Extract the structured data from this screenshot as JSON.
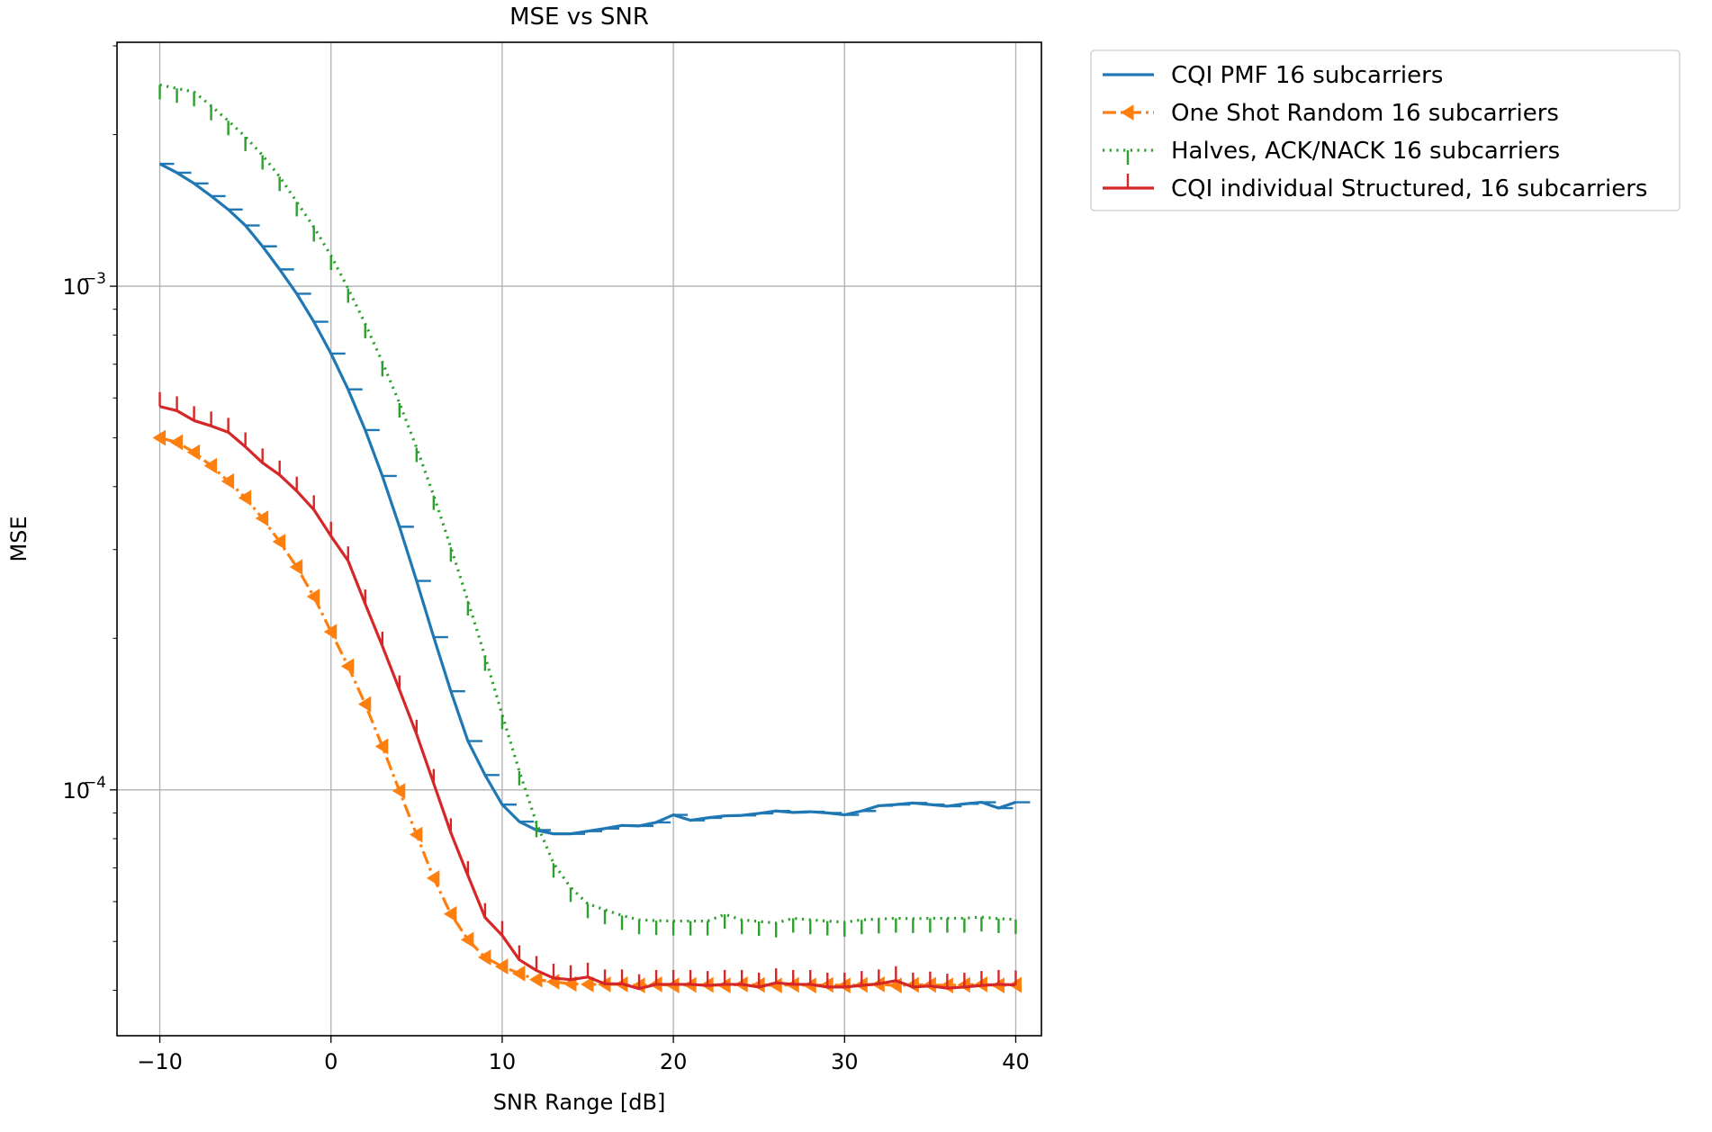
{
  "chart_data": {
    "type": "line",
    "title": "MSE vs SNR",
    "xlabel": "SNR Range [dB]",
    "ylabel": "MSE",
    "xlim": [
      -12.5,
      41.5
    ],
    "ylim": [
      3.25e-05,
      0.00305
    ],
    "yscale": "log",
    "grid": true,
    "legend_position": "outside-top-right",
    "x_ticks": [
      {
        "value": -10,
        "label": "−10"
      },
      {
        "value": 0,
        "label": "0"
      },
      {
        "value": 10,
        "label": "10"
      },
      {
        "value": 20,
        "label": "20"
      },
      {
        "value": 30,
        "label": "30"
      },
      {
        "value": 40,
        "label": "40"
      }
    ],
    "y_ticks": [
      {
        "value": 0.001,
        "base": "10",
        "exp": "−3"
      },
      {
        "value": 0.0001,
        "base": "10",
        "exp": "−4"
      }
    ],
    "x": [
      -10,
      -9,
      -8,
      -7,
      -6,
      -5,
      -4,
      -3,
      -2,
      -1,
      0,
      1,
      2,
      3,
      4,
      5,
      6,
      7,
      8,
      9,
      10,
      11,
      12,
      13,
      14,
      15,
      16,
      17,
      18,
      19,
      20,
      21,
      22,
      23,
      24,
      25,
      26,
      27,
      28,
      29,
      30,
      31,
      32,
      33,
      34,
      35,
      36,
      37,
      38,
      39,
      40
    ],
    "series": [
      {
        "name": "CQI PMF 16 subcarriers",
        "color": "#1f77b4",
        "linestyle": "solid",
        "marker": "hline",
        "values": [
          0.00175,
          0.00168,
          0.0016,
          0.00151,
          0.00142,
          0.00132,
          0.0012,
          0.00108,
          0.000966,
          0.00085,
          0.000735,
          0.000624,
          0.000518,
          0.00042,
          0.000333,
          0.00026,
          0.000201,
          0.000157,
          0.000125,
          0.000107,
          9.35e-05,
          8.65e-05,
          8.32e-05,
          8.18e-05,
          8.18e-05,
          8.28e-05,
          8.38e-05,
          8.5e-05,
          8.48e-05,
          8.62e-05,
          8.92e-05,
          8.7e-05,
          8.8e-05,
          8.88e-05,
          8.9e-05,
          8.98e-05,
          9.08e-05,
          9.02e-05,
          9.05e-05,
          9e-05,
          8.92e-05,
          9.08e-05,
          9.3e-05,
          9.35e-05,
          9.42e-05,
          9.35e-05,
          9.28e-05,
          9.38e-05,
          9.45e-05,
          9.2e-05,
          9.45e-05
        ]
      },
      {
        "name": "One Shot Random 16 subcarriers",
        "color": "#ff7f0e",
        "linestyle": "dashdot",
        "marker": "triangle-left",
        "values": [
          0.0005,
          0.00049,
          0.000468,
          0.00044,
          0.00041,
          0.00038,
          0.000346,
          0.000311,
          0.000277,
          0.000242,
          0.000206,
          0.000176,
          0.000148,
          0.000122,
          9.95e-05,
          8.15e-05,
          6.68e-05,
          5.67e-05,
          5.04e-05,
          4.65e-05,
          4.46e-05,
          4.32e-05,
          4.2e-05,
          4.16e-05,
          4.12e-05,
          4.11e-05,
          4.11e-05,
          4.11e-05,
          4.09e-05,
          4.11e-05,
          4.09e-05,
          4.1e-05,
          4.1e-05,
          4.09e-05,
          4.11e-05,
          4.1e-05,
          4.09e-05,
          4.1e-05,
          4.09e-05,
          4.1e-05,
          4.09e-05,
          4.1e-05,
          4.11e-05,
          4.09e-05,
          4.1e-05,
          4.1e-05,
          4.09e-05,
          4.1e-05,
          4.11e-05,
          4.09e-05,
          4.1e-05
        ]
      },
      {
        "name": "Halves, ACK/NACK 16 subcarriers",
        "color": "#2ca02c",
        "linestyle": "dotted",
        "marker": "tickdown",
        "values": [
          0.00251,
          0.00247,
          0.00243,
          0.00228,
          0.00213,
          0.00198,
          0.00182,
          0.00165,
          0.00147,
          0.00131,
          0.00115,
          0.00099,
          0.000842,
          0.000707,
          0.000586,
          0.000478,
          0.000384,
          0.000303,
          0.000237,
          0.000184,
          0.000141,
          0.000109,
          8.6e-05,
          7.15e-05,
          6.4e-05,
          5.94e-05,
          5.78e-05,
          5.63e-05,
          5.52e-05,
          5.5e-05,
          5.49e-05,
          5.49e-05,
          5.49e-05,
          5.66e-05,
          5.52e-05,
          5.48e-05,
          5.44e-05,
          5.56e-05,
          5.52e-05,
          5.49e-05,
          5.46e-05,
          5.52e-05,
          5.54e-05,
          5.56e-05,
          5.55e-05,
          5.56e-05,
          5.56e-05,
          5.56e-05,
          5.59e-05,
          5.55e-05,
          5.53e-05
        ]
      },
      {
        "name": "CQI individual Structured, 16 subcarriers",
        "color": "#d62728",
        "linestyle": "solid",
        "marker": "tickup",
        "values": [
          0.000577,
          0.000566,
          0.000541,
          0.000528,
          0.000513,
          0.00048,
          0.000446,
          0.000422,
          0.000392,
          0.00036,
          0.000319,
          0.000285,
          0.000234,
          0.000193,
          0.000158,
          0.000129,
          0.000103,
          8.22e-05,
          6.76e-05,
          5.58e-05,
          5.14e-05,
          4.6e-05,
          4.38e-05,
          4.23e-05,
          4.2e-05,
          4.25e-05,
          4.12e-05,
          4.12e-05,
          4.03e-05,
          4.11e-05,
          4.11e-05,
          4.11e-05,
          4.09e-05,
          4.11e-05,
          4.11e-05,
          4.06e-05,
          4.14e-05,
          4.11e-05,
          4.11e-05,
          4.06e-05,
          4.06e-05,
          4.09e-05,
          4.12e-05,
          4.18e-05,
          4.06e-05,
          4.08e-05,
          4.04e-05,
          4.06e-05,
          4.09e-05,
          4.11e-05,
          4.1e-05
        ]
      }
    ]
  }
}
